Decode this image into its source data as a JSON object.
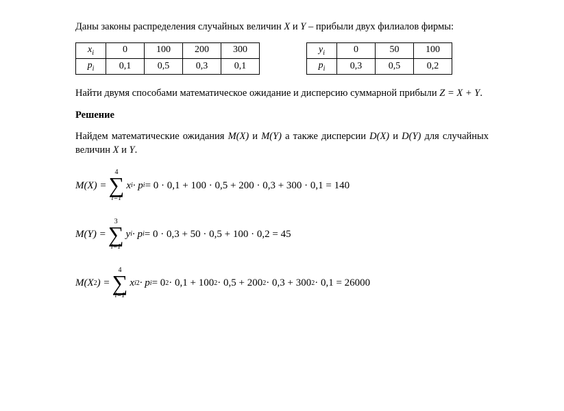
{
  "intro": {
    "line1_a": "Даны законы распределения случайных величин ",
    "var_x": "X",
    "line1_b": " и ",
    "var_y": "Y",
    "line1_c": " – прибыли двух филиалов фирмы:"
  },
  "table_x": {
    "header": "x",
    "header_sub": "i",
    "p_header": "p",
    "p_header_sub": "i",
    "x_values": [
      "0",
      "100",
      "200",
      "300"
    ],
    "p_values": [
      "0,1",
      "0,5",
      "0,3",
      "0,1"
    ]
  },
  "table_y": {
    "header": "y",
    "header_sub": "i",
    "p_header": "p",
    "p_header_sub": "i",
    "y_values": [
      "0",
      "50",
      "100"
    ],
    "p_values": [
      "0,3",
      "0,5",
      "0,2"
    ]
  },
  "task": {
    "text": "Найти двумя способами математическое ожидание и дисперсию суммарной прибыли  ",
    "formula": "Z = X + Y",
    "dot": "."
  },
  "solution_heading": "Решение",
  "para2": {
    "a": "Найдем математические ожидания ",
    "mx": "M(X)",
    "b": " и ",
    "my": "M(Y)",
    "c": " а также дисперсии ",
    "dx": "D(X)",
    "d": " и ",
    "dy": "D(Y)",
    "e": " для случайных величин ",
    "xx": "X",
    "f": "  и  ",
    "yy": "Y",
    "g": "."
  },
  "formula_mx": {
    "lhs": "M(X) = ",
    "sum_top": "4",
    "sum_bot": "i=1",
    "term": "x",
    "sub": "i",
    "mid": " · p",
    "rhs": " = 0 · 0,1 + 100 · 0,5 + 200 · 0,3 + 300 · 0,1 = 140"
  },
  "formula_my": {
    "lhs": "M(Y) = ",
    "sum_top": "3",
    "sum_bot": "i=1",
    "term": "y",
    "sub": "i",
    "mid": " · p",
    "rhs": " = 0 · 0,3 + 50 · 0,5 + 100 · 0,2 = 45"
  },
  "formula_mx2": {
    "lhs_a": "M(X",
    "lhs_sup": "2",
    "lhs_b": ") = ",
    "sum_top": "4",
    "sum_bot": "i=1",
    "term": "x",
    "sub": "i",
    "term_sup": "2",
    "mid": " · p",
    "rhs_a": " = 0",
    "rhs_b": " · 0,1 + 100",
    "rhs_c": " · 0,5 + 200",
    "rhs_d": " · 0,3 + 300",
    "rhs_e": " · 0,1 = 26000"
  },
  "sigma_symbol": "∑"
}
